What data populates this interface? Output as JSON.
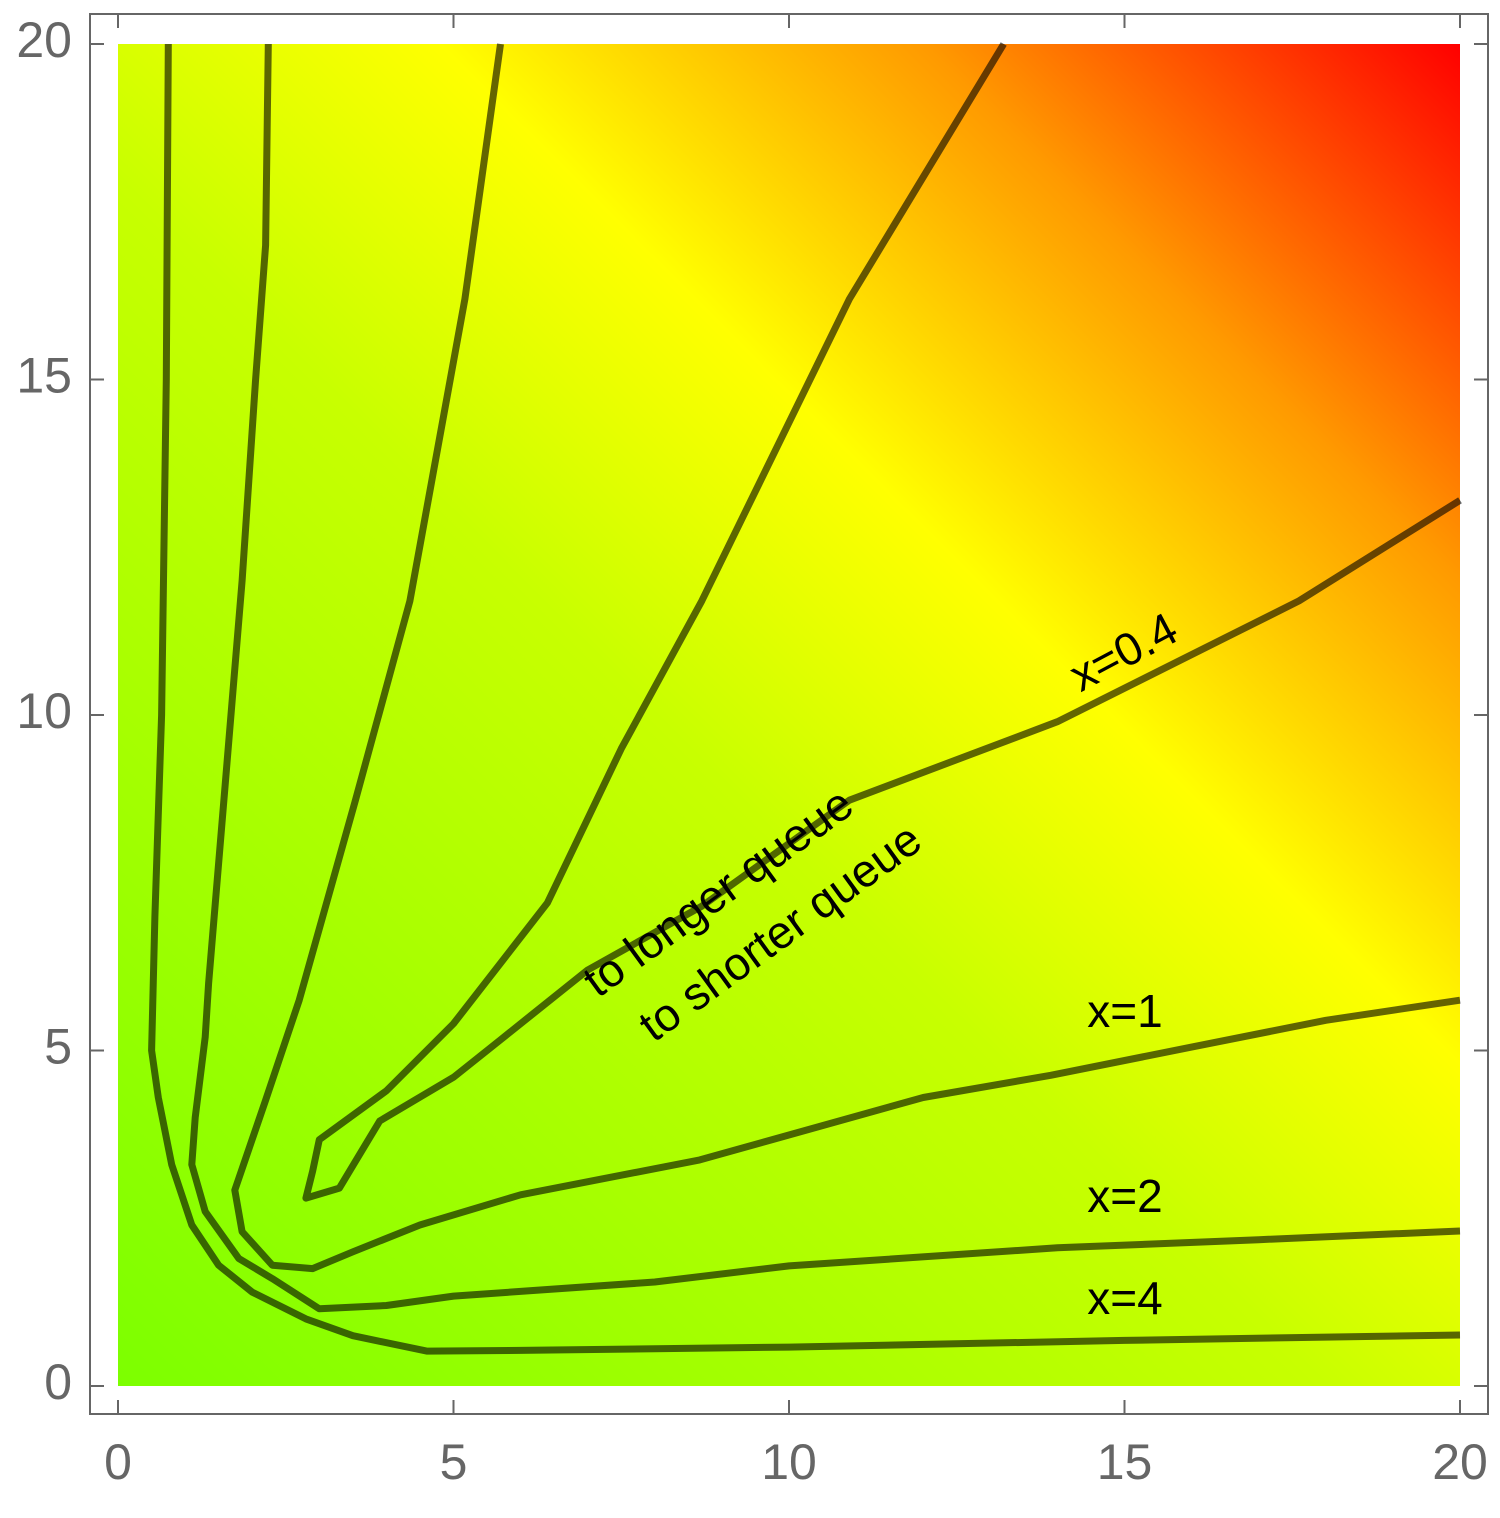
{
  "chart_data": {
    "type": "contour",
    "xlim": [
      0,
      20
    ],
    "ylim": [
      0,
      20
    ],
    "xticks": [
      0,
      5,
      10,
      15,
      20
    ],
    "yticks": [
      0,
      5,
      10,
      15,
      20
    ],
    "annotations": [
      "to longer queue",
      "to shorter queue"
    ],
    "series": [
      {
        "name": "x=4",
        "color": "#000000",
        "x": [
          0.75,
          0.72,
          0.65,
          0.55,
          0.5,
          0.6,
          0.8,
          1.1,
          1.5,
          2.0,
          2.8,
          3.5,
          4.6,
          6,
          10,
          15,
          20
        ],
        "y": [
          20,
          15,
          10,
          7,
          5,
          4.3,
          3.3,
          2.4,
          1.8,
          1.4,
          1.0,
          0.75,
          0.52,
          0.53,
          0.58,
          0.68,
          0.76
        ]
      },
      {
        "name": "x=2",
        "color": "#000000",
        "x": [
          2.24,
          2.2,
          2.05,
          1.85,
          1.6,
          1.35,
          1.3,
          1.15,
          1.1,
          1.3,
          1.8,
          2.3,
          3.0,
          4,
          5,
          8,
          10,
          14,
          17,
          20
        ],
        "y": [
          20,
          17,
          15,
          12,
          9,
          6,
          5.2,
          4,
          3.3,
          2.6,
          1.9,
          1.6,
          1.15,
          1.2,
          1.34,
          1.55,
          1.79,
          2.06,
          2.18,
          2.31
        ]
      },
      {
        "name": "x=1",
        "color": "#000000",
        "x": [
          5.7,
          5.17,
          4.35,
          3.53,
          2.7,
          2.2,
          1.74,
          1.85,
          2.3,
          2.9,
          3.5,
          4.5,
          6,
          8.67,
          12,
          13.9,
          16,
          18,
          20
        ],
        "y": [
          20,
          16.2,
          11.7,
          8.7,
          5.75,
          4.26,
          2.92,
          2.3,
          1.8,
          1.75,
          2.0,
          2.4,
          2.85,
          3.37,
          4.3,
          4.63,
          5.05,
          5.45,
          5.75
        ]
      },
      {
        "name": "x=0.4",
        "color": "#000000",
        "x": [
          13.2,
          10.9,
          8.7,
          7.5,
          6.4,
          5,
          4,
          3.0,
          2.9,
          2.8,
          3.3,
          3.9,
          5,
          5.7,
          7,
          8.7,
          10.9,
          14,
          17.6,
          20
        ],
        "y": [
          20,
          16.2,
          11.7,
          9.5,
          7.2,
          5.4,
          4.4,
          3.67,
          3.2,
          2.8,
          2.95,
          3.95,
          4.6,
          5.16,
          6.2,
          7.15,
          8.73,
          9.9,
          11.7,
          13.2
        ]
      }
    ]
  }
}
